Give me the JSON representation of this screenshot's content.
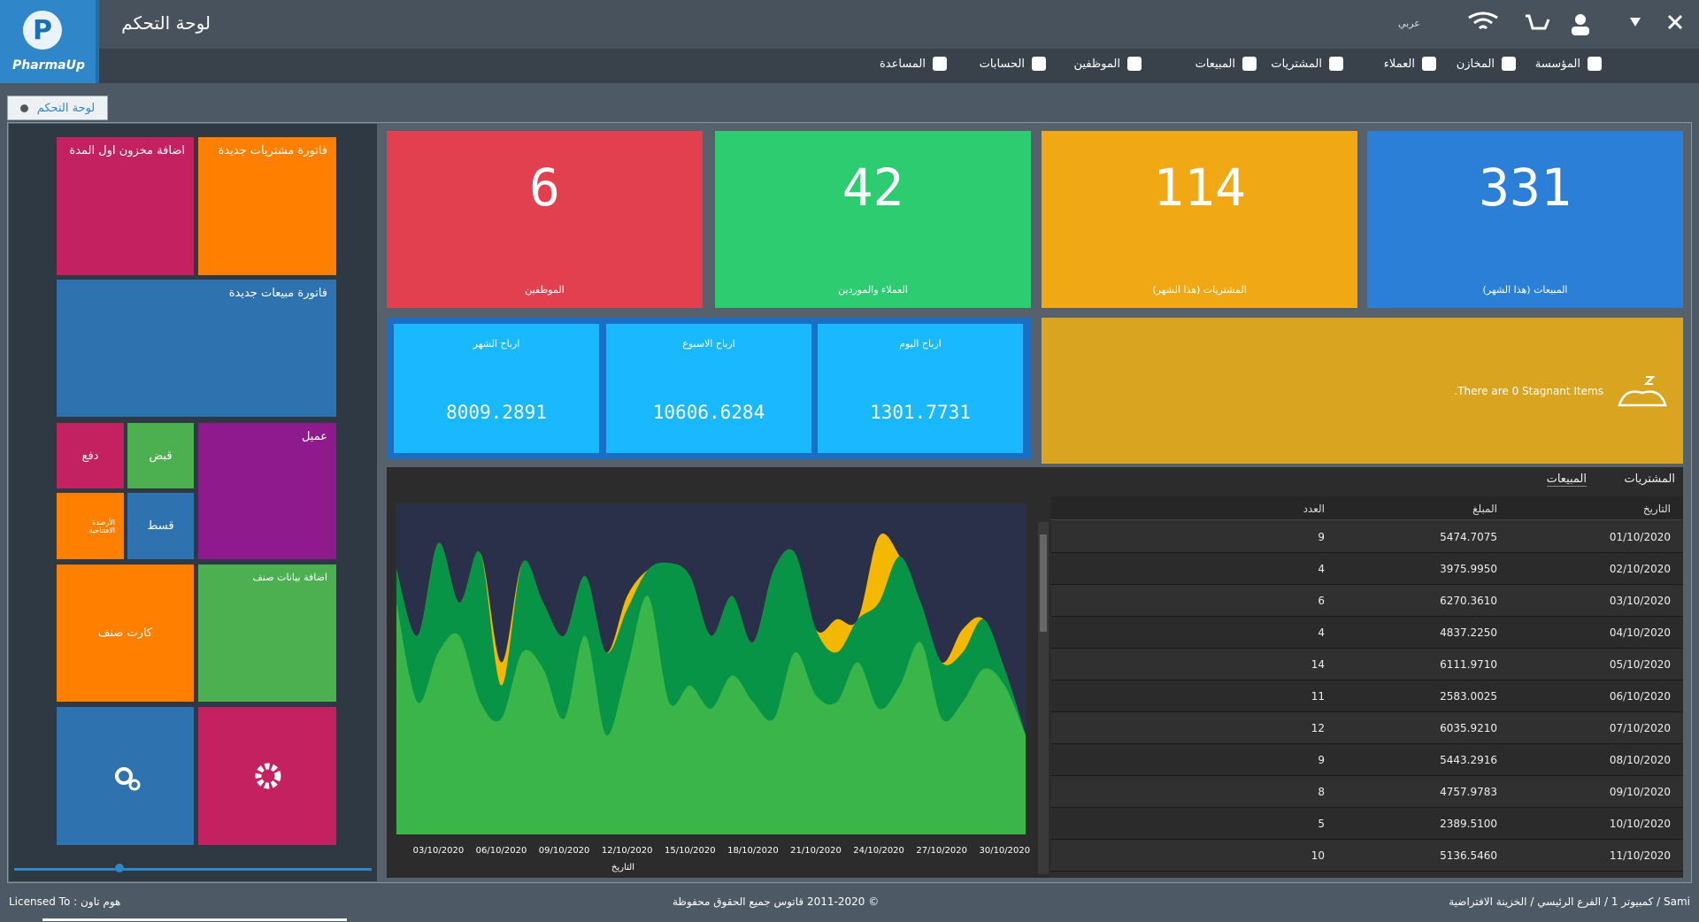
{
  "header": {
    "title": "لوحة التحكم",
    "logo": "PharmaUp",
    "language": "عربي"
  },
  "nav": [
    "المؤسسة",
    "المخازن",
    "العملاء",
    "المشتريات",
    "المبيعات",
    "الموظفين",
    "الحسابات",
    "المساعدة"
  ],
  "tab": "لوحة التحكم",
  "tiles": [
    "اضافة مخزون اول المدة",
    "فاتورة مشتريات جديدة",
    "فاتورة مبيعات جديدة",
    "دفع",
    "قبض",
    "عميل",
    "الأرصدة الافتتاحية",
    "قسط",
    "كارت صنف",
    "اضافة بيانات صنف"
  ],
  "stats": [
    {
      "value": "6",
      "label": "الموظفين"
    },
    {
      "value": "42",
      "label": "العملاء والموردين"
    },
    {
      "value": "114",
      "label": "المشتريات (هذا الشهر)"
    },
    {
      "value": "331",
      "label": "المبيعات (هذا الشهر)"
    }
  ],
  "profits": [
    {
      "label": "ارباح الشهر",
      "value": "8009.2891"
    },
    {
      "label": "ارباح الاسبوع",
      "value": "10606.6284"
    },
    {
      "label": "ارباح اليوم",
      "value": "1301.7731"
    }
  ],
  "stagnant": ".There are 0 Stagnant Items",
  "panel_tabs": [
    "المشتريات",
    "المبيعات"
  ],
  "chart": {
    "type": "area",
    "x_label": "التاريخ",
    "ylim": [
      0,
      100
    ],
    "categories": [
      null,
      null,
      "03/10/2020",
      null,
      null,
      "06/10/2020",
      null,
      null,
      "09/10/2020",
      null,
      null,
      "12/10/2020",
      null,
      null,
      "15/10/2020",
      null,
      null,
      "18/10/2020",
      null,
      null,
      "21/10/2020",
      null,
      null,
      "24/10/2020",
      null,
      null,
      "27/10/2020",
      null,
      null,
      "30/10/2020",
      null
    ],
    "series": [
      {
        "color": "#f5b800",
        "values": [
          80,
          60,
          88,
          70,
          85,
          52,
          82,
          70,
          60,
          78,
          55,
          72,
          80,
          82,
          78,
          60,
          72,
          58,
          80,
          85,
          62,
          65,
          65,
          90,
          84,
          70,
          52,
          62,
          65,
          50,
          30
        ]
      },
      {
        "color": "#079447",
        "values": [
          80,
          60,
          88,
          70,
          85,
          45,
          82,
          70,
          60,
          78,
          55,
          68,
          80,
          82,
          78,
          60,
          72,
          58,
          80,
          85,
          62,
          55,
          65,
          70,
          84,
          70,
          52,
          55,
          65,
          50,
          30
        ]
      },
      {
        "color": "#39b54a",
        "values": [
          70,
          40,
          55,
          60,
          40,
          35,
          55,
          50,
          35,
          60,
          30,
          50,
          72,
          40,
          45,
          38,
          48,
          40,
          35,
          55,
          42,
          40,
          52,
          38,
          45,
          58,
          35,
          40,
          50,
          45,
          30
        ]
      }
    ]
  },
  "table": {
    "columns": [
      "التاريخ",
      "المبلغ",
      "العدد"
    ],
    "rows": [
      [
        "01/10/2020",
        "5474.7075",
        "9"
      ],
      [
        "02/10/2020",
        "3975.9950",
        "4"
      ],
      [
        "03/10/2020",
        "6270.3610",
        "6"
      ],
      [
        "04/10/2020",
        "4837.2250",
        "4"
      ],
      [
        "05/10/2020",
        "6111.9710",
        "14"
      ],
      [
        "06/10/2020",
        "2583.0025",
        "11"
      ],
      [
        "07/10/2020",
        "6035.9210",
        "12"
      ],
      [
        "08/10/2020",
        "5443.2916",
        "9"
      ],
      [
        "09/10/2020",
        "4757.9783",
        "8"
      ],
      [
        "10/10/2020",
        "2389.5100",
        "5"
      ],
      [
        "11/10/2020",
        "5136.5460",
        "10"
      ]
    ]
  },
  "footer": {
    "license": "Licensed To : هوم تاون",
    "copyright": "© 2011-2020 قاتوس جميع الحقوق محفوظة",
    "session": "Sami / كمبيوتر 1 / الفرع الرئيسي / الخزينة الافتراضية"
  }
}
